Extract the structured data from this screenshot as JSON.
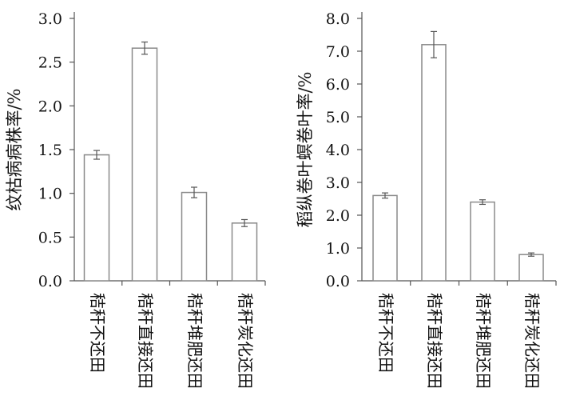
{
  "chart_data": [
    {
      "type": "bar",
      "ylabel": "纹枯病病株率/%",
      "xlabel": "",
      "categories": [
        "秸秆不还田",
        "秸秆直接还田",
        "秸秆堆肥还田",
        "秸秆炭化还田"
      ],
      "values": [
        1.44,
        2.66,
        1.01,
        0.66
      ],
      "errors": [
        0.05,
        0.07,
        0.06,
        0.04
      ],
      "ylim": [
        0,
        3.0
      ],
      "yticks": [
        "0.0",
        "0.5",
        "1.0",
        "1.5",
        "2.0",
        "2.5",
        "3.0"
      ],
      "grid": false,
      "legend": "none"
    },
    {
      "type": "bar",
      "ylabel": "稻纵卷叶螟卷叶率/%",
      "xlabel": "",
      "categories": [
        "秸秆不还田",
        "秸秆直接还田",
        "秸秆堆肥还田",
        "秸秆炭化还田"
      ],
      "values": [
        2.6,
        7.2,
        2.4,
        0.8
      ],
      "errors": [
        0.08,
        0.4,
        0.07,
        0.05
      ],
      "ylim": [
        0,
        8.0
      ],
      "yticks": [
        "0.0",
        "1.0",
        "2.0",
        "3.0",
        "4.0",
        "5.0",
        "6.0",
        "7.0",
        "8.0"
      ],
      "grid": false,
      "legend": "none"
    }
  ],
  "colors": {
    "bar_fill": "#ffffff",
    "bar_stroke": "#8a8a8a",
    "axis": "#555555",
    "error_bar": "#555555"
  }
}
